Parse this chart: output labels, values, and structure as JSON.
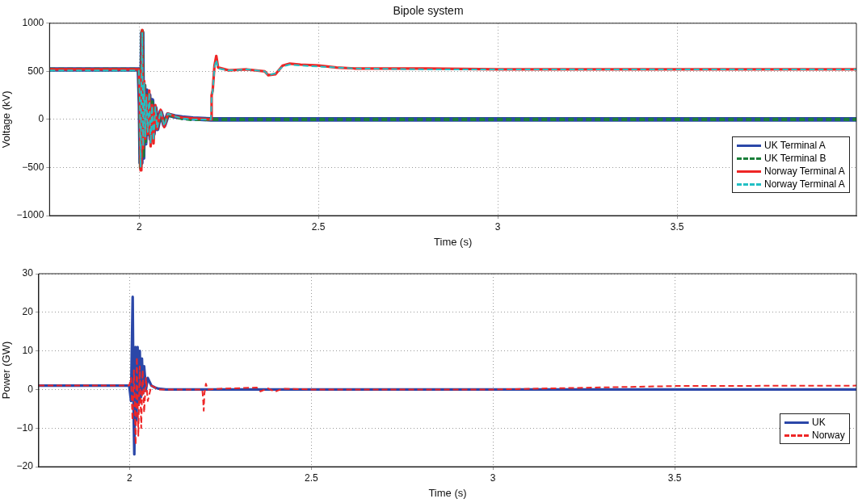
{
  "chart_data": [
    {
      "type": "line",
      "title": "Bipole system",
      "xlabel": "Time (s)",
      "ylabel": "Voltage (kV)",
      "xlim": [
        1.75,
        4
      ],
      "xticks": [
        2,
        2.5,
        3,
        3.5
      ],
      "ylim": [
        -1000,
        1000
      ],
      "yticks": [
        -1000,
        -500,
        0,
        500,
        1000
      ],
      "grid": true,
      "legend": "bottom right",
      "marker": "none",
      "series": [
        {
          "name": "UK Terminal A",
          "color": "#2b47a8",
          "line_style": "solid",
          "x": [
            1.75,
            1.999,
            2.002,
            2.004,
            2.006,
            2.0085,
            2.011,
            2.014,
            2.017,
            2.02,
            2.024,
            2.028,
            2.032,
            2.036,
            2.04,
            2.045,
            2.05,
            2.06,
            2.07,
            2.08,
            2.1,
            2.12,
            2.15,
            2.2,
            2.5,
            3,
            3.5,
            4
          ],
          "values": [
            520,
            520,
            150,
            -450,
            250,
            900,
            -400,
            350,
            -250,
            300,
            -150,
            250,
            -200,
            200,
            -150,
            120,
            -100,
            80,
            -60,
            50,
            30,
            20,
            10,
            0,
            0,
            0,
            0,
            0
          ]
        },
        {
          "name": "UK Terminal B",
          "color": "#1b7f3a",
          "line_style": "dashed",
          "x": [
            1.75,
            1.999,
            2.002,
            2.004,
            2.006,
            2.0085,
            2.011,
            2.014,
            2.017,
            2.02,
            2.024,
            2.028,
            2.032,
            2.036,
            2.04,
            2.045,
            2.05,
            2.06,
            2.07,
            2.08,
            2.1,
            2.12,
            2.15,
            2.2,
            2.5,
            3,
            3.5,
            4
          ],
          "values": [
            520,
            520,
            180,
            -500,
            280,
            920,
            -380,
            380,
            -230,
            280,
            -170,
            230,
            -180,
            180,
            -130,
            110,
            -90,
            70,
            -50,
            50,
            30,
            10,
            0,
            0,
            0,
            0,
            0,
            0
          ]
        },
        {
          "name": "Norway Terminal A",
          "color": "#ee2626",
          "line_style": "solid",
          "x": [
            1.75,
            1.999,
            2.002,
            2.004,
            2.006,
            2.0085,
            2.011,
            2.014,
            2.017,
            2.02,
            2.024,
            2.028,
            2.032,
            2.036,
            2.04,
            2.045,
            2.05,
            2.06,
            2.07,
            2.08,
            2.1,
            2.12,
            2.15,
            2.2,
            2.202,
            2.205,
            2.21,
            2.215,
            2.22,
            2.25,
            2.3,
            2.35,
            2.36,
            2.38,
            2.4,
            2.42,
            2.45,
            2.5,
            2.55,
            2.6,
            2.8,
            3,
            3.5,
            4
          ],
          "values": [
            520,
            520,
            200,
            -530,
            300,
            930,
            -300,
            400,
            -200,
            250,
            -150,
            300,
            -280,
            150,
            -250,
            150,
            -100,
            100,
            -80,
            60,
            30,
            20,
            10,
            0,
            250,
            300,
            560,
            660,
            540,
            510,
            520,
            500,
            460,
            470,
            560,
            580,
            570,
            560,
            540,
            530,
            530,
            520,
            520,
            520
          ]
        },
        {
          "name": "Norway Terminal A",
          "color": "#22c0c4",
          "line_style": "dashed",
          "x": [
            1.75,
            1.999,
            2.002,
            2.004,
            2.006,
            2.0085,
            2.011,
            2.014,
            2.017,
            2.02,
            2.024,
            2.028,
            2.032,
            2.036,
            2.04,
            2.045,
            2.05,
            2.06,
            2.07,
            2.08,
            2.1,
            2.12,
            2.15,
            2.2,
            2.202,
            2.205,
            2.21,
            2.215,
            2.22,
            2.25,
            2.3,
            2.35,
            2.36,
            2.38,
            2.4,
            2.42,
            2.45,
            2.5,
            2.55,
            2.6,
            2.8,
            3,
            3.5,
            4
          ],
          "values": [
            510,
            510,
            180,
            -500,
            280,
            900,
            -280,
            380,
            -180,
            230,
            -130,
            280,
            -250,
            140,
            -220,
            130,
            -90,
            90,
            -70,
            60,
            30,
            10,
            0,
            0,
            240,
            290,
            540,
            620,
            530,
            510,
            520,
            500,
            460,
            480,
            550,
            570,
            560,
            550,
            540,
            530,
            520,
            520,
            520,
            520
          ]
        }
      ]
    },
    {
      "type": "line",
      "xlabel": "Time (s)",
      "ylabel": "Power (GW)",
      "xlim": [
        1.75,
        4
      ],
      "xticks": [
        2,
        2.5,
        3,
        3.5
      ],
      "ylim": [
        -20,
        30
      ],
      "yticks": [
        -20,
        -10,
        0,
        10,
        20,
        30
      ],
      "grid": true,
      "legend": "bottom right",
      "marker": "none",
      "series": [
        {
          "name": "UK",
          "color": "#2b47a8",
          "line_style": "solid",
          "x": [
            1.75,
            1.999,
            2.004,
            2.0085,
            2.011,
            2.013,
            2.016,
            2.019,
            2.022,
            2.025,
            2.028,
            2.031,
            2.034,
            2.037,
            2.04,
            2.045,
            2.05,
            2.06,
            2.07,
            2.08,
            2.1,
            2.2,
            3,
            4
          ],
          "values": [
            1,
            1,
            -3,
            24,
            -5,
            -16.8,
            11,
            -8,
            11,
            -4,
            10,
            -2,
            8,
            -1,
            6,
            0,
            3,
            1,
            0.5,
            0.2,
            0,
            0,
            0,
            0
          ]
        },
        {
          "name": "Norway",
          "color": "#ee2626",
          "line_style": "dashed",
          "x": [
            1.75,
            1.999,
            2.004,
            2.008,
            2.012,
            2.0167,
            2.02,
            2.024,
            2.028,
            2.032,
            2.036,
            2.04,
            2.045,
            2.05,
            2.06,
            2.08,
            2.1,
            2.2,
            2.202,
            2.204,
            2.206,
            2.21,
            2.215,
            2.25,
            2.35,
            2.36,
            2.38,
            2.4,
            2.42,
            2.5,
            3,
            3.5,
            4
          ],
          "values": [
            1,
            1,
            3,
            -8,
            5,
            -14.3,
            8.4,
            -12,
            6,
            -10,
            5,
            -6,
            3,
            -3,
            1,
            0,
            0,
            0,
            -2,
            -5.5,
            -1,
            1.5,
            0,
            0.2,
            0.5,
            -0.5,
            0.3,
            -0.6,
            0.2,
            0,
            0,
            0.9,
            1
          ]
        }
      ]
    }
  ]
}
